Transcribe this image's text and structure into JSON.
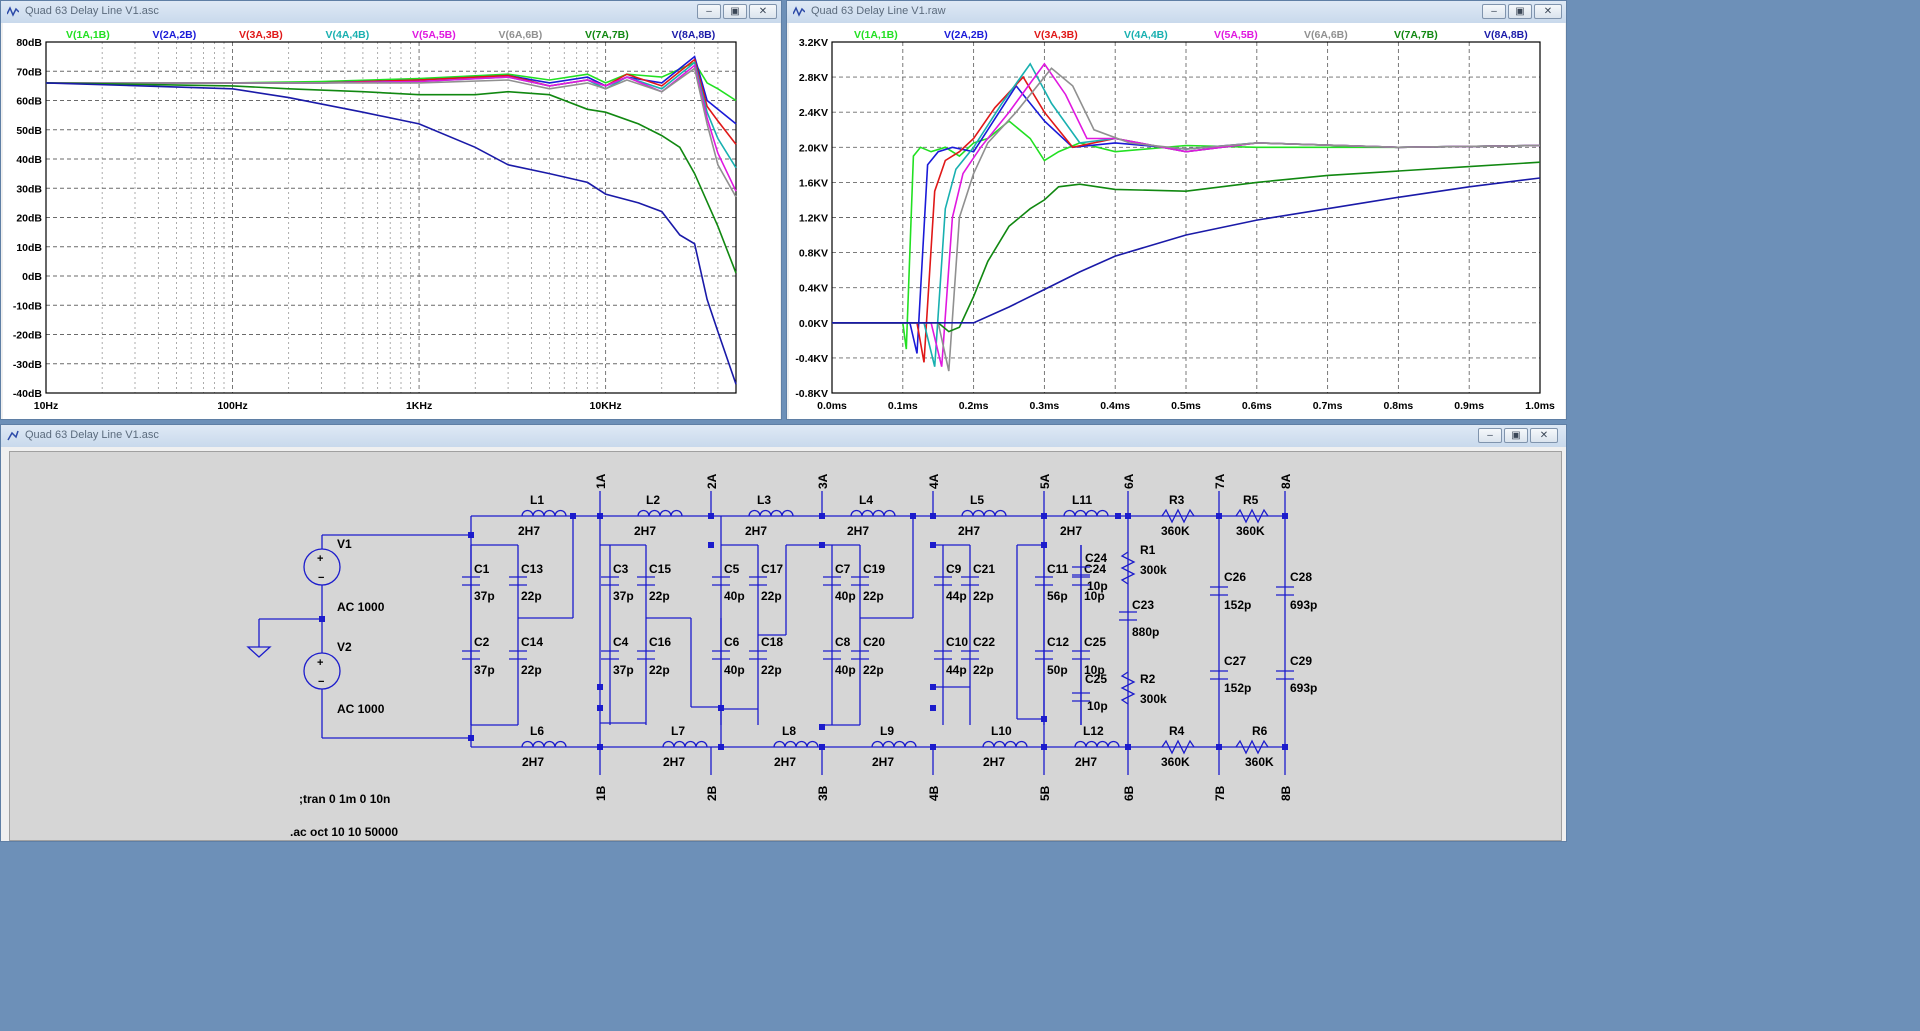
{
  "windows": {
    "ac": {
      "title": "Quad 63 Delay Line V1.asc"
    },
    "tran": {
      "title": "Quad 63 Delay Line V1.raw"
    },
    "schematic": {
      "title": "Quad 63 Delay Line V1.asc"
    }
  },
  "buttons": {
    "minimize": "–",
    "maximize": "▣",
    "close": "✕"
  },
  "legend": [
    {
      "name": "V(1A,1B)",
      "color": "#22e022"
    },
    {
      "name": "V(2A,2B)",
      "color": "#1a1ad8"
    },
    {
      "name": "V(3A,3B)",
      "color": "#e01818"
    },
    {
      "name": "V(4A,4B)",
      "color": "#18b0b0"
    },
    {
      "name": "V(5A,5B)",
      "color": "#e018e0"
    },
    {
      "name": "V(6A,6B)",
      "color": "#909090"
    },
    {
      "name": "V(7A,7B)",
      "color": "#118811"
    },
    {
      "name": "V(8A,8B)",
      "color": "#1a1aa8"
    }
  ],
  "chart_data": [
    {
      "type": "line",
      "x_scale": "log",
      "x_ticks": [
        "10Hz",
        "100Hz",
        "1KHz",
        "10KHz"
      ],
      "y_ticks": [
        "80dB",
        "70dB",
        "60dB",
        "50dB",
        "40dB",
        "30dB",
        "20dB",
        "10dB",
        "0dB",
        "-10dB",
        "-20dB",
        "-30dB",
        "-40dB"
      ],
      "xlim": [
        10,
        50000
      ],
      "ylim": [
        -40,
        80
      ],
      "series": [
        {
          "name": "V(1A,1B)",
          "x": [
            10,
            100,
            300,
            1000,
            3000,
            5000,
            8000,
            10000,
            13000,
            20000,
            30000,
            35000,
            40000,
            50000
          ],
          "y": [
            66,
            66,
            66.5,
            67.5,
            69,
            67,
            69,
            66,
            69,
            68,
            73,
            66,
            64,
            60
          ]
        },
        {
          "name": "V(2A,2B)",
          "x": [
            10,
            100,
            300,
            1000,
            3000,
            5000,
            8000,
            10000,
            13000,
            20000,
            30000,
            35000,
            40000,
            50000
          ],
          "y": [
            66,
            66,
            66,
            67,
            68.5,
            66,
            68,
            65,
            68,
            66,
            75,
            60,
            57,
            52
          ]
        },
        {
          "name": "V(3A,3B)",
          "x": [
            10,
            100,
            300,
            1000,
            3000,
            5000,
            8000,
            10000,
            13000,
            20000,
            30000,
            35000,
            40000,
            50000
          ],
          "y": [
            66,
            66,
            66,
            67,
            68.5,
            65,
            67,
            65,
            69,
            65,
            74,
            58,
            53,
            45
          ]
        },
        {
          "name": "V(4A,4B)",
          "x": [
            10,
            100,
            300,
            1000,
            3000,
            5000,
            8000,
            10000,
            13000,
            20000,
            30000,
            35000,
            40000,
            50000
          ],
          "y": [
            66,
            66,
            66,
            66.5,
            68,
            65,
            67,
            64,
            68,
            64,
            73,
            56,
            47,
            37
          ]
        },
        {
          "name": "V(5A,5B)",
          "x": [
            10,
            100,
            300,
            1000,
            3000,
            5000,
            8000,
            10000,
            13000,
            20000,
            30000,
            35000,
            40000,
            50000
          ],
          "y": [
            66,
            66,
            66,
            66.5,
            68,
            65,
            67,
            65,
            68,
            63,
            72,
            54,
            42,
            29
          ]
        },
        {
          "name": "V(6A,6B)",
          "x": [
            10,
            100,
            300,
            1000,
            3000,
            5000,
            8000,
            10000,
            13000,
            20000,
            30000,
            35000,
            40000,
            50000
          ],
          "y": [
            66,
            66,
            66,
            66,
            67,
            64,
            66,
            64,
            67,
            63,
            71,
            52,
            38,
            27
          ]
        },
        {
          "name": "V(7A,7B)",
          "x": [
            10,
            100,
            200,
            500,
            1000,
            2000,
            3000,
            5000,
            8000,
            10000,
            15000,
            20000,
            25000,
            30000,
            40000,
            50000
          ],
          "y": [
            66,
            65,
            64,
            63,
            62,
            62,
            63,
            62,
            57,
            56,
            52,
            48,
            44,
            35,
            17,
            1
          ]
        },
        {
          "name": "V(8A,8B)",
          "x": [
            10,
            100,
            200,
            500,
            1000,
            2000,
            3000,
            5000,
            8000,
            10000,
            15000,
            20000,
            25000,
            30000,
            35000,
            40000,
            50000
          ],
          "y": [
            66,
            64,
            61,
            56,
            52,
            44,
            38,
            35,
            32,
            28,
            25,
            22,
            14,
            11,
            -8,
            -19,
            -37
          ]
        }
      ]
    },
    {
      "type": "line",
      "x_ticks": [
        "0.0ms",
        "0.1ms",
        "0.2ms",
        "0.3ms",
        "0.4ms",
        "0.5ms",
        "0.6ms",
        "0.7ms",
        "0.8ms",
        "0.9ms",
        "1.0ms"
      ],
      "y_ticks": [
        "3.2KV",
        "2.8KV",
        "2.4KV",
        "2.0KV",
        "1.6KV",
        "1.2KV",
        "0.8KV",
        "0.4KV",
        "0.0KV",
        "-0.4KV",
        "-0.8KV"
      ],
      "xlim": [
        0,
        1.0
      ],
      "ylim": [
        -0.8,
        3.2
      ],
      "series": [
        {
          "name": "V(1A,1B)",
          "x": [
            0,
            0.1,
            0.105,
            0.115,
            0.125,
            0.14,
            0.16,
            0.18,
            0.2,
            0.22,
            0.25,
            0.28,
            0.3,
            0.32,
            0.35,
            0.4,
            0.5,
            0.6,
            0.8,
            1.0
          ],
          "y": [
            0,
            0,
            -0.3,
            1.9,
            2.0,
            1.95,
            2.0,
            1.9,
            2.05,
            2.1,
            2.3,
            2.1,
            1.85,
            1.95,
            2.05,
            1.95,
            2.02,
            2.0,
            2.0,
            2.02
          ]
        },
        {
          "name": "V(2A,2B)",
          "x": [
            0,
            0.11,
            0.12,
            0.135,
            0.15,
            0.17,
            0.2,
            0.22,
            0.26,
            0.3,
            0.34,
            0.4,
            0.5,
            0.6,
            0.8,
            1.0
          ],
          "y": [
            0,
            0,
            -0.35,
            1.8,
            1.95,
            2.0,
            1.95,
            2.2,
            2.7,
            2.3,
            2.0,
            2.05,
            1.98,
            2.05,
            2.0,
            2.02
          ]
        },
        {
          "name": "V(3A,3B)",
          "x": [
            0,
            0.12,
            0.13,
            0.145,
            0.16,
            0.18,
            0.2,
            0.23,
            0.27,
            0.3,
            0.34,
            0.4,
            0.5,
            0.6,
            0.8,
            1.0
          ],
          "y": [
            0,
            0,
            -0.45,
            1.5,
            1.85,
            1.95,
            2.1,
            2.45,
            2.8,
            2.4,
            2.0,
            2.1,
            1.95,
            2.05,
            2.0,
            2.02
          ]
        },
        {
          "name": "V(4A,4B)",
          "x": [
            0,
            0.13,
            0.145,
            0.16,
            0.175,
            0.2,
            0.24,
            0.28,
            0.31,
            0.35,
            0.4,
            0.5,
            0.6,
            0.8,
            1.0
          ],
          "y": [
            0,
            0,
            -0.5,
            1.3,
            1.75,
            2.0,
            2.5,
            2.95,
            2.5,
            2.05,
            2.1,
            1.95,
            2.05,
            2.0,
            2.02
          ]
        },
        {
          "name": "V(5A,5B)",
          "x": [
            0,
            0.14,
            0.155,
            0.17,
            0.185,
            0.21,
            0.25,
            0.3,
            0.33,
            0.36,
            0.4,
            0.5,
            0.6,
            0.8,
            1.0
          ],
          "y": [
            0,
            0,
            -0.5,
            1.2,
            1.7,
            2.0,
            2.4,
            2.95,
            2.6,
            2.1,
            2.1,
            1.95,
            2.05,
            2.0,
            2.02
          ]
        },
        {
          "name": "V(6A,6B)",
          "x": [
            0,
            0.15,
            0.165,
            0.18,
            0.2,
            0.22,
            0.26,
            0.31,
            0.34,
            0.37,
            0.42,
            0.5,
            0.6,
            0.8,
            1.0
          ],
          "y": [
            0,
            0,
            -0.55,
            1.2,
            1.7,
            2.05,
            2.4,
            2.9,
            2.7,
            2.2,
            2.05,
            1.98,
            2.05,
            2.0,
            2.02
          ]
        },
        {
          "name": "V(7A,7B)",
          "x": [
            0,
            0.15,
            0.165,
            0.18,
            0.2,
            0.22,
            0.25,
            0.28,
            0.3,
            0.32,
            0.35,
            0.4,
            0.5,
            0.6,
            0.7,
            0.8,
            0.9,
            1.0
          ],
          "y": [
            0,
            0,
            -0.1,
            -0.05,
            0.3,
            0.7,
            1.1,
            1.3,
            1.4,
            1.55,
            1.58,
            1.52,
            1.5,
            1.6,
            1.68,
            1.73,
            1.78,
            1.83
          ]
        },
        {
          "name": "V(8A,8B)",
          "x": [
            0,
            0.2,
            0.25,
            0.3,
            0.35,
            0.4,
            0.5,
            0.6,
            0.7,
            0.8,
            0.9,
            1.0
          ],
          "y": [
            0,
            0,
            0.18,
            0.38,
            0.58,
            0.76,
            1.0,
            1.17,
            1.3,
            1.43,
            1.55,
            1.65
          ]
        }
      ]
    }
  ],
  "schematic": {
    "sources": [
      {
        "name": "V1",
        "value": "AC 1000"
      },
      {
        "name": "V2",
        "value": "AC 1000"
      }
    ],
    "inductors": [
      {
        "name": "L1",
        "value": "2H7"
      },
      {
        "name": "L2",
        "value": "2H7"
      },
      {
        "name": "L3",
        "value": "2H7"
      },
      {
        "name": "L4",
        "value": "2H7"
      },
      {
        "name": "L5",
        "value": "2H7"
      },
      {
        "name": "L11",
        "value": "2H7"
      },
      {
        "name": "L6",
        "value": "2H7"
      },
      {
        "name": "L7",
        "value": "2H7"
      },
      {
        "name": "L8",
        "value": "2H7"
      },
      {
        "name": "L9",
        "value": "2H7"
      },
      {
        "name": "L10",
        "value": "2H7"
      },
      {
        "name": "L12",
        "value": "2H7"
      }
    ],
    "capacitors": [
      {
        "name": "C1",
        "value": "37p"
      },
      {
        "name": "C13",
        "value": "22p"
      },
      {
        "name": "C2",
        "value": "37p"
      },
      {
        "name": "C14",
        "value": "22p"
      },
      {
        "name": "C3",
        "value": "37p"
      },
      {
        "name": "C15",
        "value": "22p"
      },
      {
        "name": "C4",
        "value": "37p"
      },
      {
        "name": "C16",
        "value": "22p"
      },
      {
        "name": "C5",
        "value": "40p"
      },
      {
        "name": "C17",
        "value": "22p"
      },
      {
        "name": "C6",
        "value": "40p"
      },
      {
        "name": "C18",
        "value": "22p"
      },
      {
        "name": "C7",
        "value": "40p"
      },
      {
        "name": "C19",
        "value": "22p"
      },
      {
        "name": "C8",
        "value": "40p"
      },
      {
        "name": "C20",
        "value": "22p"
      },
      {
        "name": "C9",
        "value": "44p"
      },
      {
        "name": "C21",
        "value": "22p"
      },
      {
        "name": "C10",
        "value": "44p"
      },
      {
        "name": "C22",
        "value": "22p"
      },
      {
        "name": "C11",
        "value": "56p"
      },
      {
        "name": "C24",
        "value": "10p"
      },
      {
        "name": "C12",
        "value": "50p"
      },
      {
        "name": "C25",
        "value": "10p"
      },
      {
        "name": "C23",
        "value": "880p"
      },
      {
        "name": "C26",
        "value": "152p"
      },
      {
        "name": "C27",
        "value": "152p"
      },
      {
        "name": "C28",
        "value": "693p"
      },
      {
        "name": "C29",
        "value": "693p"
      }
    ],
    "resistors": [
      {
        "name": "R1",
        "value": "300k"
      },
      {
        "name": "R2",
        "value": "300k"
      },
      {
        "name": "R3",
        "value": "360K"
      },
      {
        "name": "R4",
        "value": "360K"
      },
      {
        "name": "R5",
        "value": "360K"
      },
      {
        "name": "R6",
        "value": "360K"
      }
    ],
    "nodes_top": [
      "1A",
      "2A",
      "3A",
      "4A",
      "5A",
      "6A",
      "7A",
      "8A"
    ],
    "nodes_bottom": [
      "1B",
      "2B",
      "3B",
      "4B",
      "5B",
      "6B",
      "7B",
      "8B"
    ],
    "directives": [
      ";tran 0 1m 0 10n",
      ".ac oct 10 10 50000"
    ]
  }
}
